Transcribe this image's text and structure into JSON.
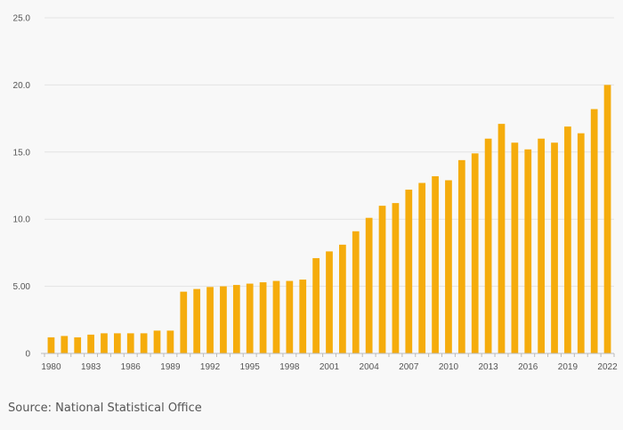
{
  "chart_data": {
    "type": "bar",
    "title": "",
    "xlabel": "",
    "ylabel": "",
    "ylim": [
      0,
      25
    ],
    "grid": true,
    "bar_color": "#f5ac0c",
    "grid_color": "#e3e3e3",
    "axis_color": "#bbbbbb",
    "yticks": [
      {
        "value": 0,
        "label": "0"
      },
      {
        "value": 5,
        "label": "5.00"
      },
      {
        "value": 10,
        "label": "10.0"
      },
      {
        "value": 15,
        "label": "15.0"
      },
      {
        "value": 20,
        "label": "20.0"
      },
      {
        "value": 25,
        "label": "25.0"
      }
    ],
    "categories": [
      "1980",
      "1981",
      "1982",
      "1983",
      "1984",
      "1985",
      "1986",
      "1987",
      "1988",
      "1989",
      "1990",
      "1991",
      "1992",
      "1993",
      "1994",
      "1995",
      "1996",
      "1997",
      "1998",
      "1999",
      "2000",
      "2001",
      "2002",
      "2003",
      "2004",
      "2005",
      "2006",
      "2007",
      "2008",
      "2009",
      "2010",
      "2011",
      "2012",
      "2013",
      "2014",
      "2015",
      "2016",
      "2017",
      "2018",
      "2019",
      "2020",
      "2021",
      "2022"
    ],
    "x_tick_labels": [
      "1980",
      "1983",
      "1986",
      "1989",
      "1992",
      "1995",
      "1998",
      "2001",
      "2004",
      "2007",
      "2010",
      "2013",
      "2016",
      "2019",
      "2022"
    ],
    "series": [
      {
        "name": "Value",
        "values": [
          1.2,
          1.3,
          1.2,
          1.4,
          1.5,
          1.5,
          1.5,
          1.5,
          1.7,
          1.7,
          4.6,
          4.8,
          4.95,
          5.0,
          5.1,
          5.2,
          5.3,
          5.4,
          5.4,
          5.5,
          7.1,
          7.6,
          8.1,
          9.1,
          10.1,
          11.0,
          11.2,
          12.2,
          12.7,
          13.2,
          12.9,
          14.4,
          14.9,
          16.0,
          17.1,
          15.7,
          15.2,
          16.0,
          15.7,
          16.9,
          16.4,
          18.2,
          20.0
        ]
      }
    ]
  },
  "footer": {
    "source": "Source: National Statistical Office"
  }
}
